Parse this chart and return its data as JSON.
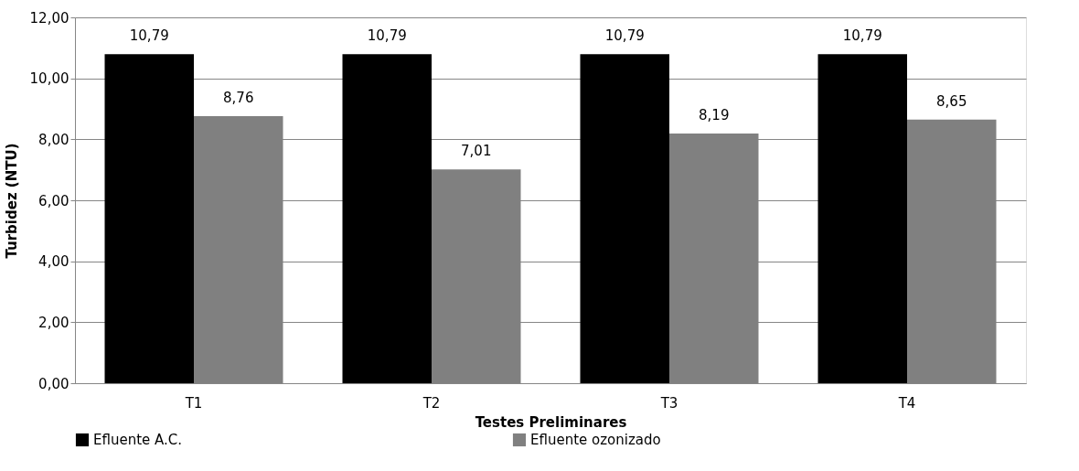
{
  "chart_data": {
    "type": "bar",
    "xlabel": "Testes Preliminares",
    "ylabel": "Turbidez (NTU)",
    "categories": [
      "T1",
      "T2",
      "T3",
      "T4"
    ],
    "series": [
      {
        "name": "Efluente A.C.",
        "color": "#000000",
        "values": [
          10.79,
          10.79,
          10.79,
          10.79
        ],
        "value_labels": [
          "10,79",
          "10,79",
          "10,79",
          "10,79"
        ]
      },
      {
        "name": "Efluente ozonizado",
        "color": "#808080",
        "values": [
          8.76,
          7.01,
          8.19,
          8.65
        ],
        "value_labels": [
          "8,76",
          "7,01",
          "8,19",
          "8,65"
        ]
      }
    ],
    "ylim": [
      0,
      12
    ],
    "yticks": [
      {
        "value": 0,
        "label": "0,00"
      },
      {
        "value": 2,
        "label": "2,00"
      },
      {
        "value": 4,
        "label": "4,00"
      },
      {
        "value": 6,
        "label": "6,00"
      },
      {
        "value": 8,
        "label": "8,00"
      },
      {
        "value": 10,
        "label": "10,00"
      },
      {
        "value": 12,
        "label": "12,00"
      }
    ],
    "grid": "y",
    "legend": "bottom"
  }
}
